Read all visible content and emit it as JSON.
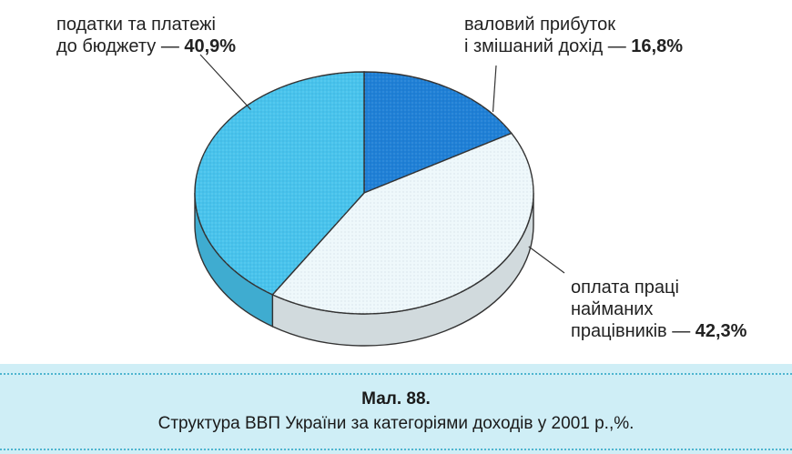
{
  "chart_data": {
    "type": "pie",
    "title": "Структура ВВП України за категоріями доходів у 2001 р.,%.",
    "figure_number": "Мал. 88.",
    "slices": [
      {
        "label_lines": [
          "валовий прибуток",
          "і змішаний дохід — "
        ],
        "value_text": "16,8%",
        "value": 16.8,
        "color": "#1f80d6"
      },
      {
        "label_lines": [
          "оплата праці",
          "найманих",
          "працівників — "
        ],
        "value_text": "42,3%",
        "value": 42.3,
        "color": "#eef8fb"
      },
      {
        "label_lines": [
          "податки та платежі",
          "до бюджету — "
        ],
        "value_text": "40,9%",
        "value": 40.9,
        "color": "#48c3ec"
      }
    ]
  },
  "caption": {
    "number": "Мал. 88.",
    "text": "Структура ВВП України за категоріями доходів у 2001 р.,%."
  }
}
